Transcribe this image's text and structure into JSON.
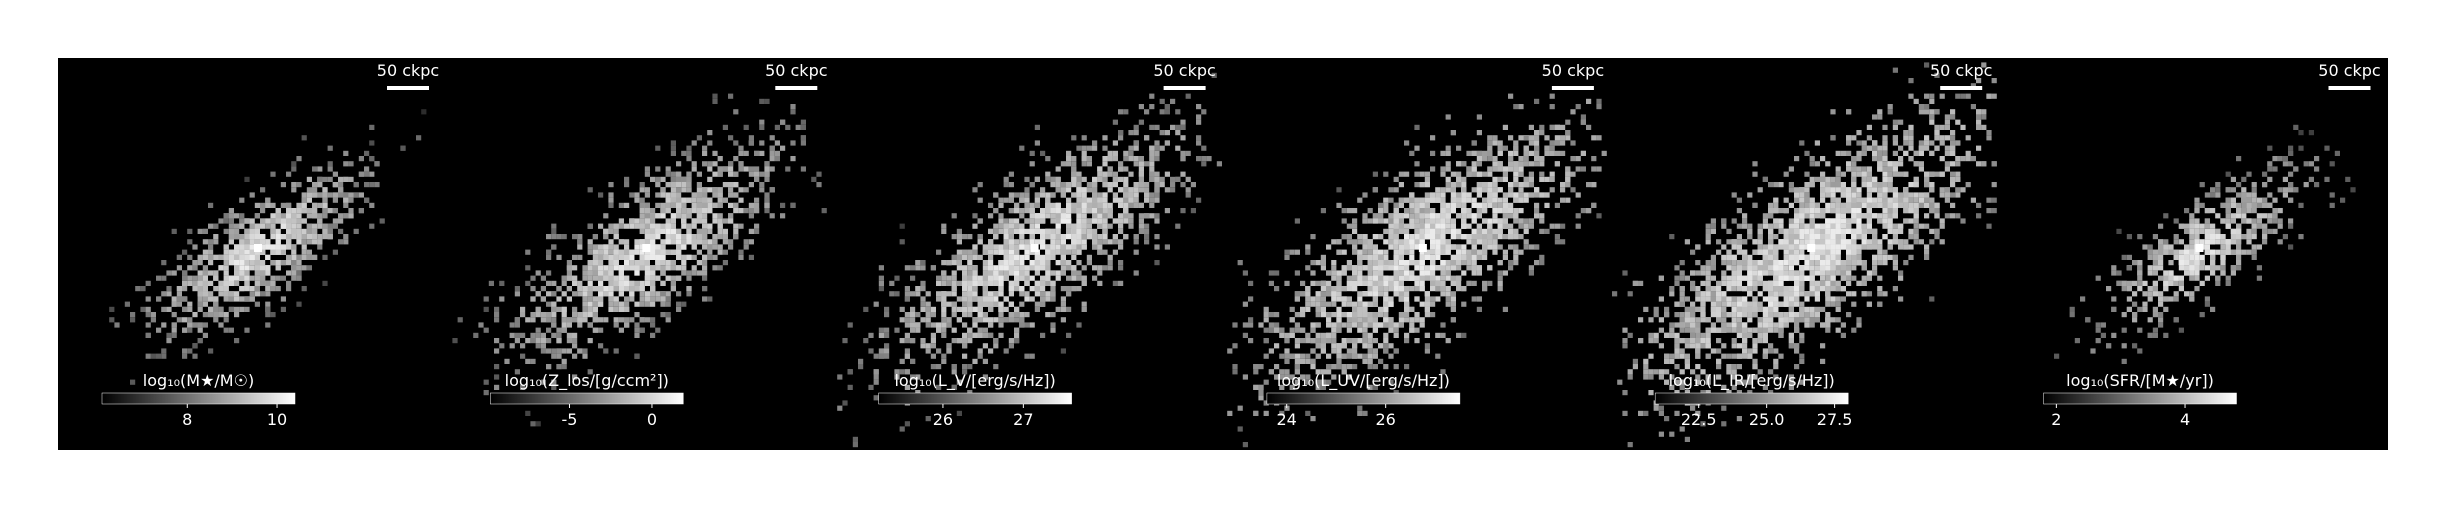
{
  "chart_data": [
    {
      "type": "map",
      "scale_label": "50 ckpc",
      "colorbar_label": "log₁₀(M★/M☉)",
      "clim": [
        6.1,
        10.4
      ],
      "cticks": [
        8,
        10
      ],
      "spread": 0.35,
      "density": 0.9
    },
    {
      "type": "map",
      "scale_label": "50 ckpc",
      "colorbar_label": "log₁₀(Z_los/[g/ccm²])",
      "clim": [
        -9.8,
        1.9
      ],
      "cticks": [
        -5,
        0
      ],
      "spread": 0.6,
      "density": 1.3
    },
    {
      "type": "map",
      "scale_label": "50 ckpc",
      "colorbar_label": "log₁₀(L_V/[erg/s/Hz])",
      "clim": [
        25.2,
        27.6
      ],
      "cticks": [
        26,
        27
      ],
      "spread": 0.7,
      "density": 1.6
    },
    {
      "type": "map",
      "scale_label": "50 ckpc",
      "colorbar_label": "log₁₀(L_UV/[erg/s/Hz])",
      "clim": [
        23.6,
        27.5
      ],
      "cticks": [
        24,
        26
      ],
      "spread": 0.8,
      "density": 2.0
    },
    {
      "type": "map",
      "scale_label": "50 ckpc",
      "colorbar_label": "log₁₀(L_IR/[erg/s/Hz])",
      "clim": [
        20.9,
        28.0
      ],
      "cticks": [
        22.5,
        {
          "value": 25,
          "label": "25.0"
        },
        27.5
      ],
      "spread": 0.85,
      "density": 2.4
    },
    {
      "type": "map",
      "scale_label": "50 ckpc",
      "colorbar_label": "log₁₀(SFR/[M★/yr])",
      "clim": [
        1.8,
        4.8
      ],
      "cticks": [
        2,
        4
      ],
      "spread": 0.3,
      "density": 0.6
    }
  ]
}
